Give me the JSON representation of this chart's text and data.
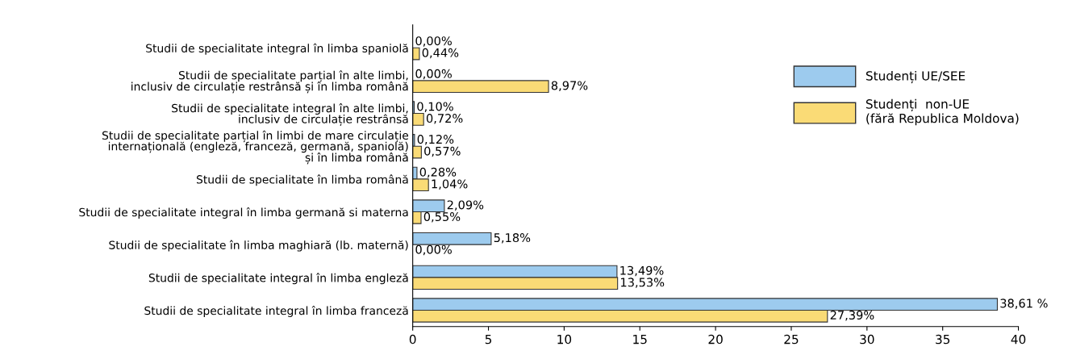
{
  "chart_data": {
    "type": "bar",
    "orientation": "horizontal",
    "categories": [
      "Studii de specialitate integral în limba spaniolă",
      "Studii de specialitate parțial în alte limbi,\ninclusiv de circulație restrânsă și în limba română",
      "Studii de specialitate integral în alte limbi,\ninclusiv de circulație restrânsă",
      "Studii de specialitate parțial în limbi de mare circulație\ninternațională (engleză, franceză, germană, spaniolă)\nși în limba română",
      "Studii de specialitate în limba română",
      "Studii de specialitate integral în limba germană si materna",
      "Studii de specialitate în limba maghiară (lb. maternă)",
      "Studii de specialitate integral în limba engleză",
      "Studii de specialitate integral în limba franceză"
    ],
    "series": [
      {
        "name": "Studenți UE/SEE",
        "color": "#9dcbee",
        "values": [
          0.0,
          0.0,
          0.1,
          0.12,
          0.28,
          2.09,
          5.18,
          13.49,
          38.61
        ],
        "value_labels": [
          "0,00%",
          "0,00%",
          "0,10%",
          "0,12%",
          "0,28%",
          "2,09%",
          "5,18%",
          "13,49%",
          "38,61 %"
        ]
      },
      {
        "name": "Studenți  non-UE\n(fără Republica Moldova)",
        "color": "#fadb76",
        "values": [
          0.44,
          8.97,
          0.72,
          0.57,
          1.04,
          0.55,
          0.0,
          13.53,
          27.39
        ],
        "value_labels": [
          "0,44%",
          "8,97%",
          "0,72%",
          "0,57%",
          "1,04%",
          "0,55%",
          "0,00%",
          "13,53%",
          "27,39%"
        ]
      }
    ],
    "xlim": [
      0,
      40
    ],
    "xticks": [
      0,
      5,
      10,
      15,
      20,
      25,
      30,
      35,
      40
    ],
    "grid": false,
    "legend": "upper right"
  }
}
